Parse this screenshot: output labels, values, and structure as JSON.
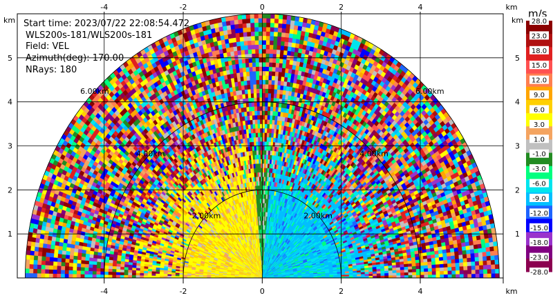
{
  "info": {
    "start_time": "Start time: 2023/07/22 22:08:54.472",
    "instrument": "WLS200s-181/WLS200s-181",
    "field": "Field: VEL",
    "azimuth": "Azimuth(deg): 170.00",
    "nrays": "NRays: 180"
  },
  "axis_unit": "km",
  "colorbar": {
    "title": "m/s",
    "labels": [
      "28.0",
      "23.0",
      "18.0",
      "15.0",
      "12.0",
      "9.0",
      "6.0",
      "3.0",
      "1.0",
      "-1.0",
      "-3.0",
      "-6.0",
      "-9.0",
      "-12.0",
      "-15.0",
      "-18.0",
      "-23.0",
      "-28.0"
    ],
    "colors": [
      "#8b0000",
      "#b01010",
      "#e02020",
      "#ff5050",
      "#ff7f50",
      "#ffa500",
      "#ffd000",
      "#ffff00",
      "#f4a460",
      "#c0c0c0",
      "#228b22",
      "#00ff7f",
      "#00e5ee",
      "#00bfff",
      "#1e64ff",
      "#0000ff",
      "#9932cc",
      "#800080",
      "#8b0050"
    ]
  },
  "chart_data": {
    "type": "heatmap",
    "title": "",
    "xlabel": "km",
    "ylabel": "km",
    "xlim": [
      -6.2,
      6.1
    ],
    "ylim": [
      0,
      6.0
    ],
    "x_ticks": [
      "-4",
      "-2",
      "0",
      "2",
      "4"
    ],
    "y_ticks": [
      "1",
      "2",
      "3",
      "4",
      "5"
    ],
    "range_rings_km": [
      2,
      4,
      6
    ],
    "ring_labels": [
      "2.00km",
      "4.00km",
      "6.00km"
    ],
    "max_range_km": 6,
    "azimuth_span_deg": [
      -90,
      90
    ],
    "field": "VEL",
    "units": "m/s"
  }
}
